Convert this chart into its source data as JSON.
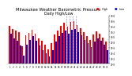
{
  "title": "Milwaukee Weather Barometric Pressure",
  "subtitle": "Daily High/Low",
  "title_fontsize": 3.8,
  "background_color": "#ffffff",
  "bar_color_high": "#ff0000",
  "bar_color_low": "#0000cc",
  "ylim": [
    29.0,
    30.8
  ],
  "ytick_vals": [
    29.0,
    29.2,
    29.4,
    29.6,
    29.8,
    30.0,
    30.2,
    30.4,
    30.6,
    30.8
  ],
  "ytick_labels": [
    "29.0",
    "29.2",
    "29.4",
    "29.6",
    "29.8",
    "30.0",
    "30.2",
    "30.4",
    "30.6",
    "30.8"
  ],
  "days": [
    1,
    2,
    3,
    4,
    5,
    6,
    7,
    8,
    9,
    10,
    11,
    12,
    13,
    14,
    15,
    16,
    17,
    18,
    19,
    20,
    21,
    22,
    23,
    24,
    25,
    26,
    27,
    28,
    29,
    30,
    31
  ],
  "highs": [
    30.42,
    30.3,
    30.25,
    30.18,
    29.65,
    30.05,
    30.15,
    30.28,
    30.12,
    29.95,
    29.85,
    29.7,
    29.55,
    29.78,
    30.08,
    30.25,
    30.4,
    30.52,
    30.38,
    30.55,
    30.58,
    30.45,
    30.32,
    30.18,
    30.02,
    29.88,
    30.08,
    30.22,
    30.12,
    29.98,
    29.82
  ],
  "lows": [
    30.12,
    29.95,
    29.85,
    29.68,
    29.3,
    29.72,
    29.88,
    30.02,
    29.85,
    29.68,
    29.52,
    29.4,
    29.28,
    29.52,
    29.82,
    30.02,
    30.15,
    30.25,
    30.12,
    30.28,
    30.3,
    30.18,
    30.05,
    29.9,
    29.76,
    29.62,
    29.82,
    29.96,
    29.85,
    29.7,
    29.52
  ],
  "dashed_lines": [
    17.5,
    18.5,
    19.5,
    20.5
  ],
  "legend_high_label": "High",
  "legend_low_label": "Low"
}
